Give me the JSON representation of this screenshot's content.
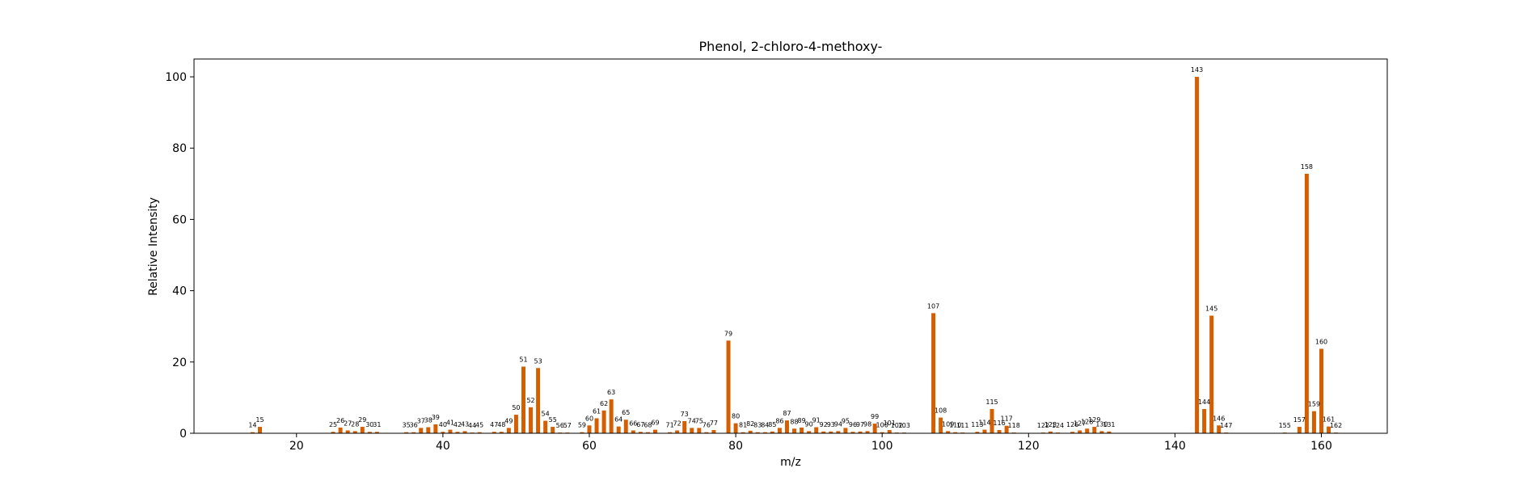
{
  "chart_data": {
    "type": "bar",
    "title": "Phenol, 2-chloro-4-methoxy-",
    "xlabel": "m/z",
    "ylabel": "Relative Intensity",
    "xlim": [
      6,
      169
    ],
    "ylim": [
      0,
      105
    ],
    "xticks": [
      20,
      40,
      60,
      80,
      100,
      120,
      140,
      160
    ],
    "yticks": [
      0,
      20,
      40,
      60,
      80,
      100
    ],
    "grid": false,
    "bar_color": "#d55e00",
    "peaks": [
      {
        "mz": 14,
        "intensity": 0.3
      },
      {
        "mz": 15,
        "intensity": 1.8
      },
      {
        "mz": 25,
        "intensity": 0.4
      },
      {
        "mz": 26,
        "intensity": 1.6
      },
      {
        "mz": 27,
        "intensity": 0.8
      },
      {
        "mz": 28,
        "intensity": 0.6
      },
      {
        "mz": 29,
        "intensity": 1.8
      },
      {
        "mz": 30,
        "intensity": 0.4
      },
      {
        "mz": 31,
        "intensity": 0.4
      },
      {
        "mz": 35,
        "intensity": 0.3
      },
      {
        "mz": 36,
        "intensity": 0.3
      },
      {
        "mz": 37,
        "intensity": 1.5
      },
      {
        "mz": 38,
        "intensity": 1.7
      },
      {
        "mz": 39,
        "intensity": 2.5
      },
      {
        "mz": 40,
        "intensity": 0.4
      },
      {
        "mz": 41,
        "intensity": 1.0
      },
      {
        "mz": 42,
        "intensity": 0.4
      },
      {
        "mz": 43,
        "intensity": 0.6
      },
      {
        "mz": 44,
        "intensity": 0.2
      },
      {
        "mz": 45,
        "intensity": 0.3
      },
      {
        "mz": 47,
        "intensity": 0.4
      },
      {
        "mz": 48,
        "intensity": 0.4
      },
      {
        "mz": 49,
        "intensity": 1.5
      },
      {
        "mz": 50,
        "intensity": 5.2
      },
      {
        "mz": 51,
        "intensity": 18.7
      },
      {
        "mz": 52,
        "intensity": 7.3
      },
      {
        "mz": 53,
        "intensity": 18.3
      },
      {
        "mz": 54,
        "intensity": 3.5
      },
      {
        "mz": 55,
        "intensity": 1.8
      },
      {
        "mz": 56,
        "intensity": 0.2
      },
      {
        "mz": 57,
        "intensity": 0.2
      },
      {
        "mz": 59,
        "intensity": 0.3
      },
      {
        "mz": 60,
        "intensity": 2.2
      },
      {
        "mz": 61,
        "intensity": 4.2
      },
      {
        "mz": 62,
        "intensity": 6.4
      },
      {
        "mz": 63,
        "intensity": 9.5
      },
      {
        "mz": 64,
        "intensity": 1.9
      },
      {
        "mz": 65,
        "intensity": 3.8
      },
      {
        "mz": 66,
        "intensity": 0.8
      },
      {
        "mz": 67,
        "intensity": 0.4
      },
      {
        "mz": 68,
        "intensity": 0.3
      },
      {
        "mz": 69,
        "intensity": 1.0
      },
      {
        "mz": 71,
        "intensity": 0.3
      },
      {
        "mz": 72,
        "intensity": 0.8
      },
      {
        "mz": 73,
        "intensity": 3.4
      },
      {
        "mz": 74,
        "intensity": 1.5
      },
      {
        "mz": 75,
        "intensity": 1.5
      },
      {
        "mz": 76,
        "intensity": 0.3
      },
      {
        "mz": 77,
        "intensity": 0.9
      },
      {
        "mz": 79,
        "intensity": 26.0
      },
      {
        "mz": 80,
        "intensity": 2.8
      },
      {
        "mz": 81,
        "intensity": 0.3
      },
      {
        "mz": 82,
        "intensity": 0.7
      },
      {
        "mz": 83,
        "intensity": 0.3
      },
      {
        "mz": 84,
        "intensity": 0.3
      },
      {
        "mz": 85,
        "intensity": 0.5
      },
      {
        "mz": 86,
        "intensity": 1.5
      },
      {
        "mz": 87,
        "intensity": 3.6
      },
      {
        "mz": 88,
        "intensity": 1.3
      },
      {
        "mz": 89,
        "intensity": 1.6
      },
      {
        "mz": 90,
        "intensity": 0.6
      },
      {
        "mz": 91,
        "intensity": 1.7
      },
      {
        "mz": 92,
        "intensity": 0.5
      },
      {
        "mz": 93,
        "intensity": 0.5
      },
      {
        "mz": 94,
        "intensity": 0.6
      },
      {
        "mz": 95,
        "intensity": 1.5
      },
      {
        "mz": 96,
        "intensity": 0.4
      },
      {
        "mz": 97,
        "intensity": 0.5
      },
      {
        "mz": 98,
        "intensity": 0.6
      },
      {
        "mz": 99,
        "intensity": 2.7
      },
      {
        "mz": 100,
        "intensity": 0.3
      },
      {
        "mz": 101,
        "intensity": 0.9
      },
      {
        "mz": 102,
        "intensity": 0.2
      },
      {
        "mz": 103,
        "intensity": 0.2
      },
      {
        "mz": 107,
        "intensity": 33.7
      },
      {
        "mz": 108,
        "intensity": 4.4
      },
      {
        "mz": 109,
        "intensity": 0.6
      },
      {
        "mz": 110,
        "intensity": 0.3
      },
      {
        "mz": 111,
        "intensity": 0.2
      },
      {
        "mz": 113,
        "intensity": 0.4
      },
      {
        "mz": 114,
        "intensity": 1.0
      },
      {
        "mz": 115,
        "intensity": 6.8
      },
      {
        "mz": 116,
        "intensity": 0.9
      },
      {
        "mz": 117,
        "intensity": 2.1
      },
      {
        "mz": 118,
        "intensity": 0.2
      },
      {
        "mz": 122,
        "intensity": 0.2
      },
      {
        "mz": 123,
        "intensity": 0.5
      },
      {
        "mz": 124,
        "intensity": 0.2
      },
      {
        "mz": 126,
        "intensity": 0.4
      },
      {
        "mz": 127,
        "intensity": 0.8
      },
      {
        "mz": 128,
        "intensity": 1.3
      },
      {
        "mz": 129,
        "intensity": 1.8
      },
      {
        "mz": 130,
        "intensity": 0.6
      },
      {
        "mz": 131,
        "intensity": 0.5
      },
      {
        "mz": 143,
        "intensity": 100
      },
      {
        "mz": 144,
        "intensity": 6.8
      },
      {
        "mz": 145,
        "intensity": 33.0
      },
      {
        "mz": 146,
        "intensity": 2.2
      },
      {
        "mz": 147,
        "intensity": 0.2
      },
      {
        "mz": 155,
        "intensity": 0.2
      },
      {
        "mz": 157,
        "intensity": 1.8
      },
      {
        "mz": 158,
        "intensity": 72.8
      },
      {
        "mz": 159,
        "intensity": 6.2
      },
      {
        "mz": 160,
        "intensity": 23.7
      },
      {
        "mz": 161,
        "intensity": 1.9
      },
      {
        "mz": 162,
        "intensity": 0.2
      }
    ]
  }
}
